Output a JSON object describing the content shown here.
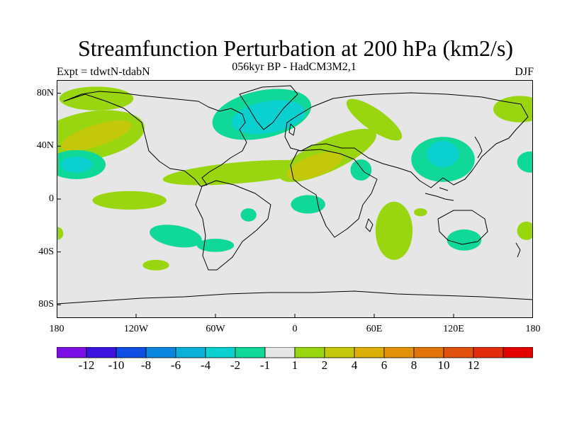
{
  "header": {
    "title": "Streamfunction Perturbation at 200 hPa (km2/s)",
    "subtitle": "056kyr BP - HadCM3M2,1",
    "left_label": "Expt = tdwtN-tdabN",
    "right_label": "DJF"
  },
  "map": {
    "projection": "cylindrical-equidistant",
    "lon_range": [
      -180,
      180
    ],
    "lat_range": [
      -90,
      90
    ],
    "background_color": "#e6e6e6",
    "coastline_color": "#000000",
    "y_ticks": [
      {
        "lat": 80,
        "label": "80N"
      },
      {
        "lat": 40,
        "label": "40N"
      },
      {
        "lat": 0,
        "label": "0"
      },
      {
        "lat": -40,
        "label": "40S"
      },
      {
        "lat": -80,
        "label": "80S"
      }
    ],
    "x_ticks": [
      {
        "lon": -180,
        "label": "180"
      },
      {
        "lon": -120,
        "label": "120W"
      },
      {
        "lon": -60,
        "label": "60W"
      },
      {
        "lon": 0,
        "label": "0"
      },
      {
        "lon": 60,
        "label": "60E"
      },
      {
        "lon": 120,
        "label": "120E"
      },
      {
        "lon": 180,
        "label": "180"
      }
    ]
  },
  "chart_data": {
    "type": "heatmap",
    "title": "Streamfunction Perturbation at 200 hPa (km2/s)",
    "x_range": [
      -180,
      180
    ],
    "y_range": [
      -90,
      90
    ],
    "regions": [
      {
        "name": "north-atlantic-low",
        "category": -2,
        "lon": -25,
        "lat": 64,
        "rlon": 38,
        "rlat": 18,
        "rot": -12
      },
      {
        "name": "north-atlantic-low-core",
        "category": -4,
        "lon": -20,
        "lat": 62,
        "rlon": 28,
        "rlat": 12,
        "rot": -10
      },
      {
        "name": "north-pacific-high",
        "category": 1,
        "lon": -155,
        "lat": 48,
        "rlon": 42,
        "rlat": 18,
        "rot": -10
      },
      {
        "name": "north-pacific-high-core",
        "category": 2,
        "lon": -150,
        "lat": 48,
        "rlon": 28,
        "rlat": 8,
        "rot": -18
      },
      {
        "name": "canada-high",
        "category": 1,
        "lon": -150,
        "lat": 76,
        "rlon": 28,
        "rlat": 9,
        "rot": 0
      },
      {
        "name": "hawaii-low",
        "category": -2,
        "lon": -165,
        "lat": 26,
        "rlon": 22,
        "rlat": 11,
        "rot": 0
      },
      {
        "name": "hawaii-low-core",
        "category": -4,
        "lon": -165,
        "lat": 26,
        "rlon": 12,
        "rlat": 6,
        "rot": 0
      },
      {
        "name": "tropical-atlantic-high",
        "category": 1,
        "lon": -40,
        "lat": 20,
        "rlon": 60,
        "rlat": 8,
        "rot": -5
      },
      {
        "name": "sahara-high",
        "category": 1,
        "lon": 25,
        "lat": 33,
        "rlon": 40,
        "rlat": 12,
        "rot": -25
      },
      {
        "name": "sahara-high-core",
        "category": 2,
        "lon": 15,
        "lat": 25,
        "rlon": 22,
        "rlat": 8,
        "rot": -20
      },
      {
        "name": "central-asia-high",
        "category": 1,
        "lon": 60,
        "lat": 60,
        "rlon": 25,
        "rlat": 8,
        "rot": 35
      },
      {
        "name": "west-pacific-low",
        "category": -2,
        "lon": 112,
        "lat": 30,
        "rlon": 24,
        "rlat": 17,
        "rot": 0
      },
      {
        "name": "west-pacific-low-core",
        "category": -4,
        "lon": 112,
        "lat": 34,
        "rlon": 12,
        "rlat": 10,
        "rot": 0
      },
      {
        "name": "arabia-low",
        "category": -2,
        "lon": 50,
        "lat": 22,
        "rlon": 8,
        "rlat": 8,
        "rot": 0
      },
      {
        "name": "africa-low",
        "category": -2,
        "lon": 10,
        "lat": -4,
        "rlon": 13,
        "rlat": 7,
        "rot": 0
      },
      {
        "name": "tropical-pacific-high",
        "category": 1,
        "lon": -125,
        "lat": -1,
        "rlon": 28,
        "rlat": 7,
        "rot": 0
      },
      {
        "name": "indian-ocean-high",
        "category": 1,
        "lon": 75,
        "lat": -24,
        "rlon": 14,
        "rlat": 22,
        "rot": 0
      },
      {
        "name": "south-pacific-low",
        "category": -2,
        "lon": -90,
        "lat": -28,
        "rlon": 20,
        "rlat": 8,
        "rot": 10
      },
      {
        "name": "brazil-low",
        "category": -2,
        "lon": -60,
        "lat": -35,
        "rlon": 14,
        "rlat": 5,
        "rot": 0
      },
      {
        "name": "south-pacific-high",
        "category": 1,
        "lon": -105,
        "lat": -50,
        "rlon": 10,
        "rlat": 4,
        "rot": 0
      },
      {
        "name": "australia-low",
        "category": -2,
        "lon": 128,
        "lat": -31,
        "rlon": 13,
        "rlat": 8,
        "rot": 0
      },
      {
        "name": "south-atlantic-low",
        "category": -2,
        "lon": -35,
        "lat": -12,
        "rlon": 6,
        "rlat": 5,
        "rot": 0
      },
      {
        "name": "tasman-high",
        "category": 1,
        "lon": 175,
        "lat": -24,
        "rlon": 7,
        "rlat": 7,
        "rot": 0
      },
      {
        "name": "dateline-high-west",
        "category": 1,
        "lon": -180,
        "lat": -26,
        "rlon": 5,
        "rlat": 5,
        "rot": 0
      },
      {
        "name": "east-asia-high",
        "category": 1,
        "lon": 170,
        "lat": 68,
        "rlon": 20,
        "rlat": 10,
        "rot": 0
      },
      {
        "name": "east-pacific-low",
        "category": -2,
        "lon": 178,
        "lat": 28,
        "rlon": 10,
        "rlat": 8,
        "rot": 0
      },
      {
        "name": "indonesia-high",
        "category": 1,
        "lon": 95,
        "lat": -10,
        "rlon": 5,
        "rlat": 3,
        "rot": 0
      }
    ]
  },
  "legend": {
    "categories": [
      {
        "value": -14,
        "color": "#7a10e6"
      },
      {
        "value": -12,
        "color": "#3c14e0"
      },
      {
        "value": -10,
        "color": "#0e4ee2"
      },
      {
        "value": -8,
        "color": "#0a86de"
      },
      {
        "value": -6,
        "color": "#0ab0d8"
      },
      {
        "value": -4,
        "color": "#0ad0d0"
      },
      {
        "value": -2,
        "color": "#10d898"
      },
      {
        "value": -1,
        "color": "#e6e6e6"
      },
      {
        "value": 1,
        "color": "#9ad610"
      },
      {
        "value": 2,
        "color": "#c4c80a"
      },
      {
        "value": 4,
        "color": "#dcae08"
      },
      {
        "value": 6,
        "color": "#e4920a"
      },
      {
        "value": 8,
        "color": "#e2740c"
      },
      {
        "value": 10,
        "color": "#e2520e"
      },
      {
        "value": 12,
        "color": "#e22c0c"
      },
      {
        "value": 14,
        "color": "#e20000"
      }
    ],
    "tick_labels": [
      "-12",
      "-10",
      "-8",
      "-6",
      "-4",
      "-2",
      "-1",
      "1",
      "2",
      "4",
      "6",
      "8",
      "10",
      "12"
    ]
  }
}
